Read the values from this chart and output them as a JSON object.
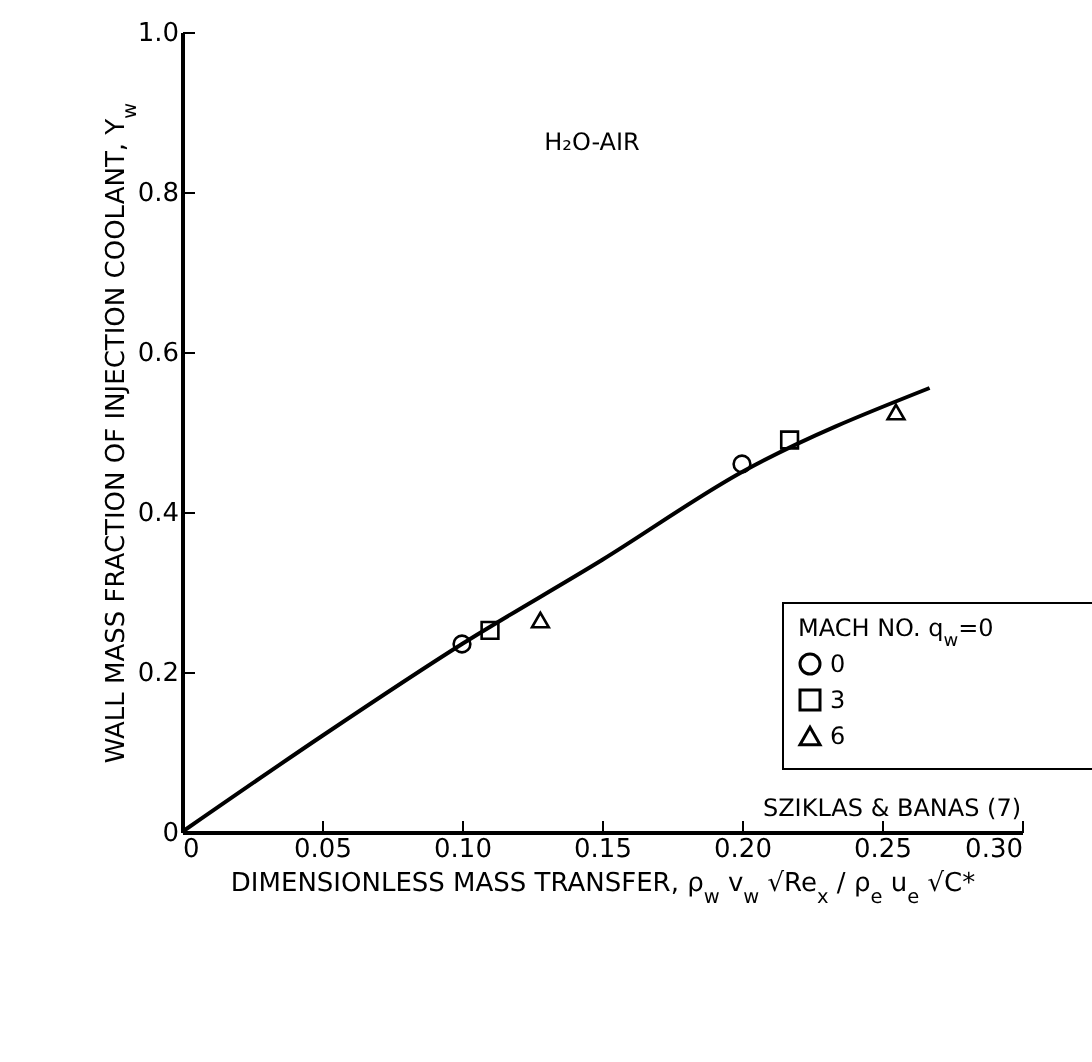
{
  "chart_data": {
    "type": "scatter",
    "xlabel": "DIMENSIONLESS MASS TRANSFER, ρ$_{w}$ v$_{w}$ √Re$_{x}$ / ρ$_{e}$ u$_{e}$ √C*",
    "ylabel": "WALL MASS FRACTION OF INJECTION COOLANT, Y$_{w}$",
    "legend_title": "MACH NO.   q$_{w}$=0",
    "annotations": [
      "H₂O-AIR",
      "SZIKLAS & BANAS (7)"
    ],
    "xlim": [
      0,
      0.3
    ],
    "ylim": [
      0,
      1.0
    ],
    "xticks": [
      0,
      0.05,
      {
        "value": 0.1,
        "label": "0.10"
      },
      0.15,
      {
        "value": 0.2,
        "label": "0.20"
      },
      0.25,
      {
        "value": 0.3,
        "label": "0.30"
      }
    ],
    "yticks": [
      0,
      0.2,
      0.4,
      0.6,
      0.8,
      {
        "value": 1.0,
        "label": "1.0"
      }
    ],
    "grid": false,
    "legend": "bottom right",
    "series": [
      {
        "type": "line",
        "color": "#000000",
        "x": [
          0,
          0.05,
          0.1,
          0.15,
          0.2,
          0.267
        ],
        "values": [
          0,
          0.12,
          0.235,
          0.34,
          0.45,
          0.555
        ]
      },
      {
        "name": "0",
        "marker": "circle",
        "color": "#000000",
        "x": [
          0.1,
          0.2
        ],
        "values": [
          0.235,
          0.46
        ]
      },
      {
        "name": "3",
        "marker": "square",
        "color": "#000000",
        "x": [
          0.11,
          0.217
        ],
        "values": [
          0.252,
          0.49
        ]
      },
      {
        "name": "6",
        "marker": "triangle",
        "color": "#000000",
        "x": [
          0.128,
          0.255
        ],
        "values": [
          0.265,
          0.525
        ]
      }
    ]
  }
}
